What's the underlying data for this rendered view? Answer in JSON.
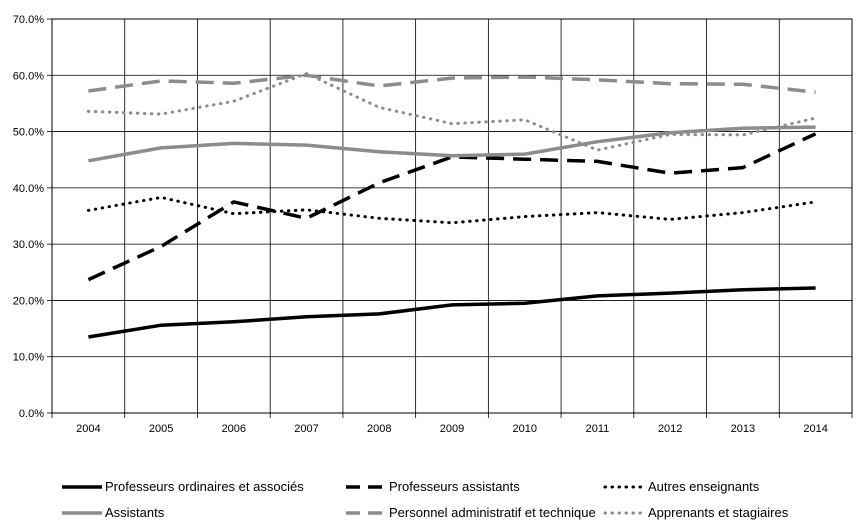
{
  "chart_data": {
    "type": "line",
    "title": "",
    "xlabel": "",
    "ylabel": "",
    "x": [
      "2004",
      "2005",
      "2006",
      "2007",
      "2008",
      "2009",
      "2010",
      "2011",
      "2012",
      "2013",
      "2014"
    ],
    "ylim": [
      0,
      70
    ],
    "yticks": [
      "0.0%",
      "10.0%",
      "20.0%",
      "30.0%",
      "40.0%",
      "50.0%",
      "60.0%",
      "70.0%"
    ],
    "grid": true,
    "legend_position": "bottom",
    "series": [
      {
        "name": "Professeurs ordinaires et associés",
        "color": "#000000",
        "style": "solid",
        "values": [
          13.5,
          15.6,
          16.2,
          17.1,
          17.6,
          19.2,
          19.5,
          20.8,
          21.3,
          21.9,
          22.2
        ]
      },
      {
        "name": "Professeurs assistants",
        "color": "#000000",
        "style": "dashed",
        "values": [
          23.7,
          29.6,
          37.5,
          34.6,
          40.9,
          45.5,
          45.1,
          44.7,
          42.6,
          43.6,
          49.6
        ]
      },
      {
        "name": "Autres enseignants",
        "color": "#000000",
        "style": "dotted",
        "values": [
          36.0,
          38.3,
          35.4,
          36.1,
          34.6,
          33.8,
          34.9,
          35.6,
          34.4,
          35.6,
          37.5
        ]
      },
      {
        "name": "Assistants",
        "color": "#8c8c8c",
        "style": "solid",
        "values": [
          44.8,
          47.1,
          47.9,
          47.6,
          46.4,
          45.7,
          46.0,
          48.2,
          49.8,
          50.6,
          50.8
        ]
      },
      {
        "name": "Personnel administratif et technique",
        "color": "#8c8c8c",
        "style": "dashed",
        "values": [
          57.2,
          59.0,
          58.6,
          60.0,
          58.1,
          59.5,
          59.7,
          59.2,
          58.5,
          58.4,
          57.0
        ]
      },
      {
        "name": "Apprenants et stagiaires",
        "color": "#8c8c8c",
        "style": "dotted",
        "values": [
          53.6,
          53.1,
          55.4,
          60.3,
          54.3,
          51.4,
          52.1,
          46.7,
          49.5,
          49.4,
          52.4
        ]
      }
    ]
  }
}
